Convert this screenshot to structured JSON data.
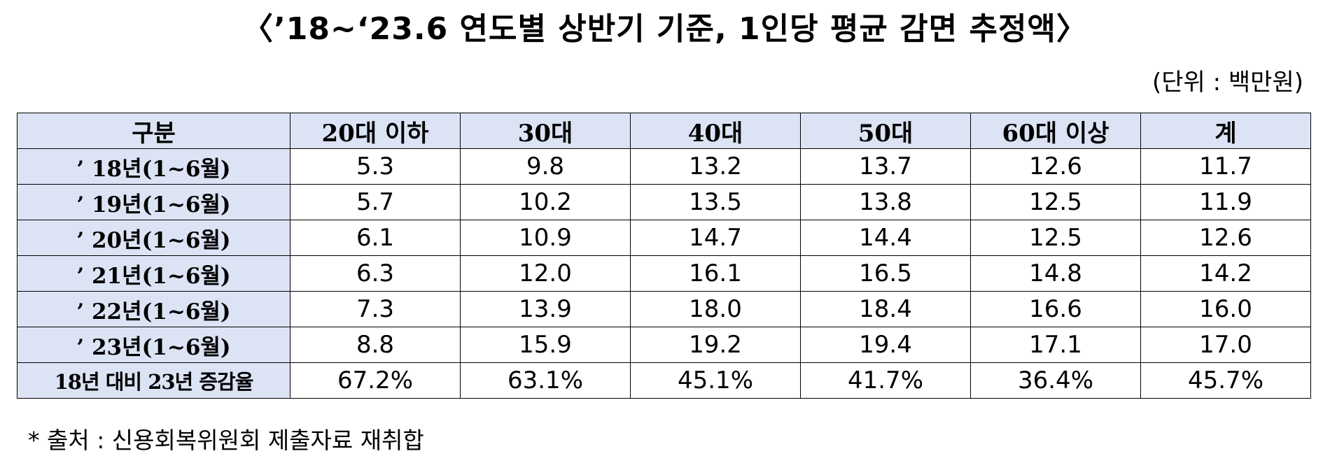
{
  "title": "〈’18~‘23.6 연도별 상반기 기준, 1인당 평균 감면 추정액〉",
  "unit": "(단위 : 백만원)",
  "table": {
    "headers": [
      "구분",
      "20대 이하",
      "30대",
      "40대",
      "50대",
      "60대 이상",
      "계"
    ],
    "rows": [
      {
        "label": "’ 18년(1~6월)",
        "values": [
          "5.3",
          "9.8",
          "13.2",
          "13.7",
          "12.6",
          "11.7"
        ]
      },
      {
        "label": "’ 19년(1~6월)",
        "values": [
          "5.7",
          "10.2",
          "13.5",
          "13.8",
          "12.5",
          "11.9"
        ]
      },
      {
        "label": "’ 20년(1~6월)",
        "values": [
          "6.1",
          "10.9",
          "14.7",
          "14.4",
          "12.5",
          "12.6"
        ]
      },
      {
        "label": "’ 21년(1~6월)",
        "values": [
          "6.3",
          "12.0",
          "16.1",
          "16.5",
          "14.8",
          "14.2"
        ]
      },
      {
        "label": "’ 22년(1~6월)",
        "values": [
          "7.3",
          "13.9",
          "18.0",
          "18.4",
          "16.6",
          "16.0"
        ]
      },
      {
        "label": "’ 23년(1~6월)",
        "values": [
          "8.8",
          "15.9",
          "19.2",
          "19.4",
          "17.1",
          "17.0"
        ]
      }
    ],
    "summary": {
      "label": "18년 대비 23년 증감율",
      "values": [
        "67.2%",
        "63.1%",
        "45.1%",
        "41.7%",
        "36.4%",
        "45.7%"
      ]
    }
  },
  "source": "* 출처 : 신용회복위원회 제출자료 재취합",
  "colors": {
    "header_background": "#dce3f4",
    "border": "#000000"
  }
}
